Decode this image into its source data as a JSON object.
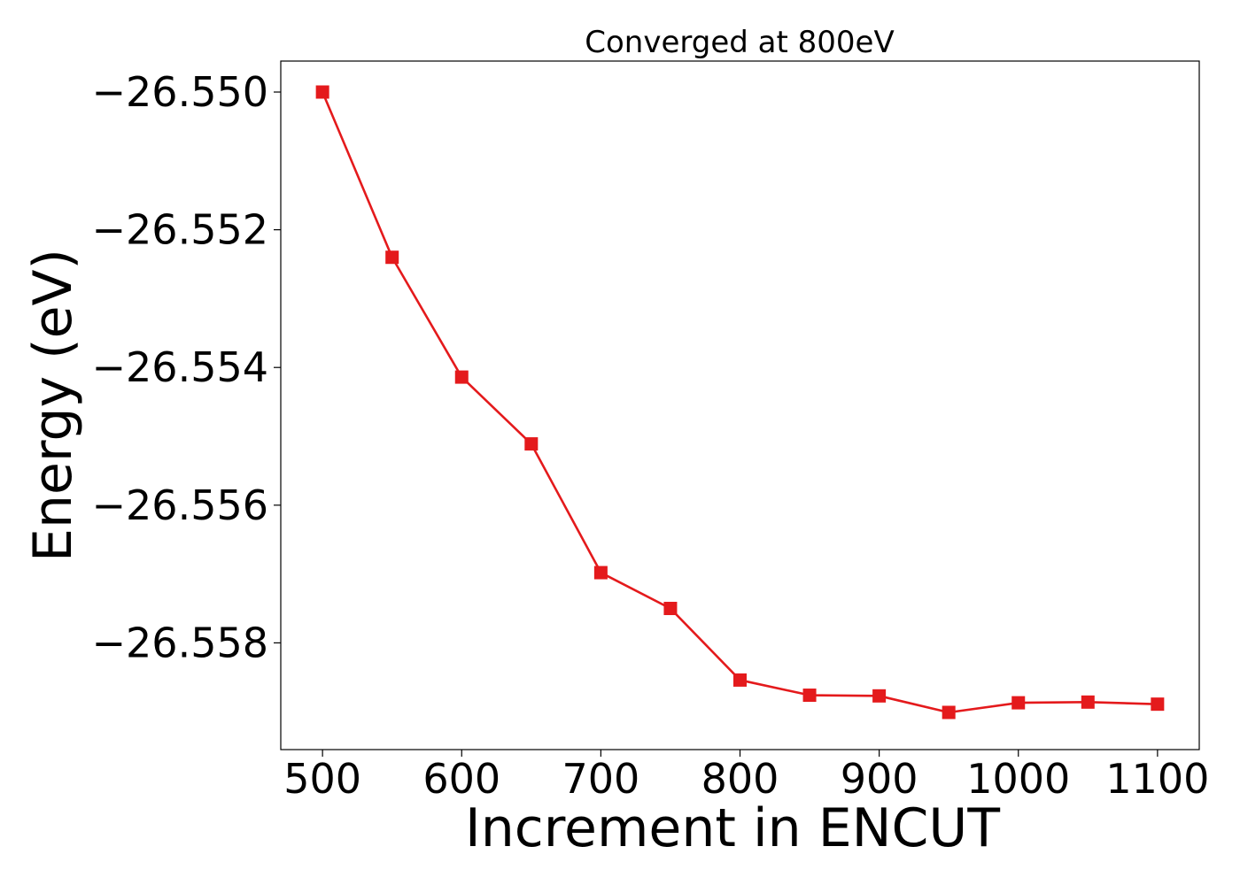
{
  "chart_data": {
    "type": "line",
    "title": "Converged at 800eV",
    "xlabel": "Increment in ENCUT",
    "ylabel": "Energy (eV)",
    "x": [
      500,
      550,
      600,
      650,
      700,
      750,
      800,
      850,
      900,
      950,
      1000,
      1050,
      1100
    ],
    "series": [
      {
        "values": [
          -26.55,
          -26.5524,
          -26.55414,
          -26.55511,
          -26.55698,
          -26.5575,
          -26.55854,
          -26.55876,
          -26.55877,
          -26.55901,
          -26.55887,
          -26.55886,
          -26.55889
        ],
        "color": "#e41a1c",
        "marker": "square"
      }
    ],
    "xlim": [
      470,
      1130
    ],
    "ylim": [
      -26.55955,
      -26.54955
    ],
    "xticks": [
      500,
      600,
      700,
      800,
      900,
      1000,
      1100
    ],
    "xtick_labels": [
      "500",
      "600",
      "700",
      "800",
      "900",
      "1000",
      "1100"
    ],
    "yticks": [
      -26.55,
      -26.552,
      -26.554,
      -26.556,
      -26.558
    ],
    "ytick_labels": [
      "−26.550",
      "−26.552",
      "−26.554",
      "−26.556",
      "−26.558"
    ],
    "grid": false,
    "legend": false
  }
}
